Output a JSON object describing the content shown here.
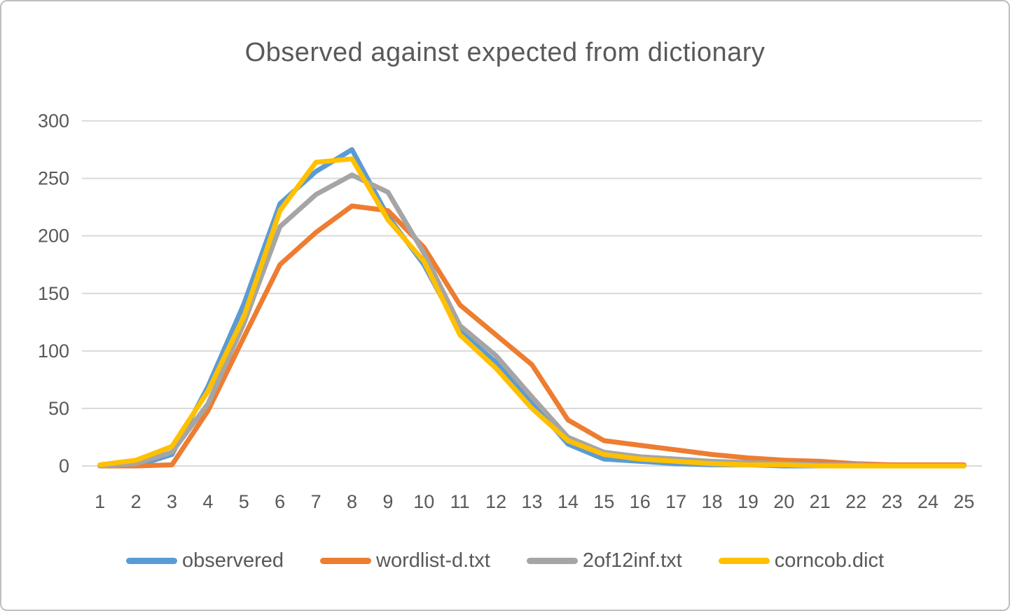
{
  "chart_data": {
    "type": "line",
    "title": "Observed against expected from dictionary",
    "categories": [
      1,
      2,
      3,
      4,
      5,
      6,
      7,
      8,
      9,
      10,
      11,
      12,
      13,
      14,
      15,
      16,
      17,
      18,
      19,
      20,
      21,
      22,
      23,
      24,
      25
    ],
    "y_ticks": [
      300,
      250,
      200,
      150,
      100,
      50,
      0
    ],
    "ylim": [
      0,
      300
    ],
    "xlabel": "",
    "ylabel": "",
    "grid": "horizontal",
    "legend_position": "bottom",
    "series": [
      {
        "name": "observered",
        "color": "#5B9BD5",
        "values": [
          0,
          0,
          10,
          69,
          141,
          228,
          256,
          275,
          217,
          175,
          117,
          90,
          55,
          19,
          6,
          4,
          2,
          1,
          1,
          0,
          0,
          0,
          0,
          0,
          0
        ]
      },
      {
        "name": "wordlist-d.txt",
        "color": "#ED7D31",
        "values": [
          0,
          0,
          1,
          48,
          112,
          175,
          203,
          226,
          222,
          190,
          140,
          114,
          88,
          40,
          22,
          18,
          14,
          10,
          7,
          5,
          4,
          2,
          1,
          1,
          1
        ]
      },
      {
        "name": "2of12inf.txt",
        "color": "#A5A5A5",
        "values": [
          0,
          2,
          12,
          54,
          124,
          208,
          236,
          253,
          238,
          185,
          122,
          96,
          60,
          25,
          12,
          8,
          6,
          4,
          3,
          2,
          1,
          1,
          0,
          0,
          0
        ]
      },
      {
        "name": "corncob.dict",
        "color": "#FFC000",
        "values": [
          1,
          5,
          17,
          65,
          130,
          222,
          264,
          267,
          214,
          178,
          114,
          85,
          50,
          22,
          10,
          6,
          4,
          2,
          1,
          1,
          0,
          0,
          0,
          0,
          0
        ]
      }
    ],
    "colors": {
      "text": "#595959",
      "gridline": "#D9D9D9",
      "frame_border": "#BFBFBF",
      "background": "#FFFFFF"
    }
  }
}
